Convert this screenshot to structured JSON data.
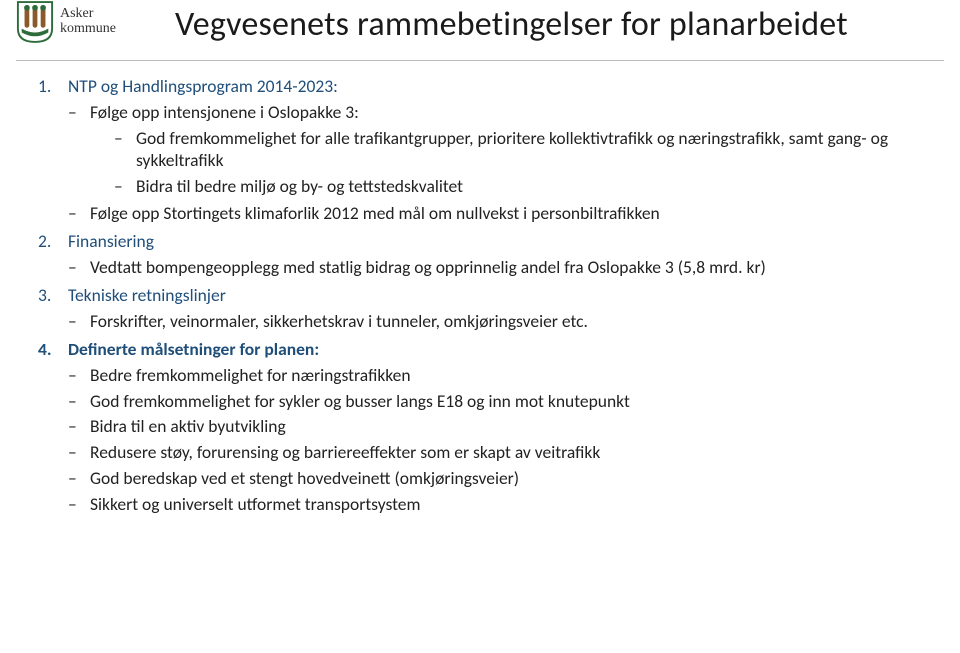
{
  "logo": {
    "line1": "Asker",
    "line2": "kommune"
  },
  "title": "Vegvesenets rammebetingelser for planarbeidet",
  "sections": [
    {
      "head": "NTP og Handlingsprogram 2014-2023:",
      "bold": false,
      "items": [
        {
          "text": "Følge opp intensjonene i Oslopakke 3:",
          "sub": [
            "God fremkommelighet for alle trafikantgrupper, prioritere kollektivtrafikk og næringstrafikk, samt gang- og sykkeltrafikk",
            "Bidra til bedre miljø og by- og tettstedskvalitet"
          ]
        },
        {
          "text": "Følge opp Stortingets klimaforlik 2012 med mål om nullvekst i personbiltrafikken"
        }
      ]
    },
    {
      "head": "Finansiering",
      "bold": false,
      "items": [
        {
          "text": "Vedtatt bompengeopplegg med statlig bidrag og opprinnelig andel fra Oslopakke 3 (5,8 mrd. kr)"
        }
      ]
    },
    {
      "head": "Tekniske retningslinjer",
      "bold": false,
      "tek": true,
      "items": [
        {
          "text": "Forskrifter, veinormaler, sikkerhetskrav i tunneler, omkjøringsveier etc."
        }
      ]
    },
    {
      "head": "Definerte målsetninger for planen:",
      "bold": true,
      "items": [
        {
          "text": "Bedre fremkommelighet for næringstrafikken"
        },
        {
          "text": "God fremkommelighet for sykler og busser langs E18 og inn mot knutepunkt"
        },
        {
          "text": "Bidra til en aktiv byutvikling"
        },
        {
          "text": "Redusere støy, forurensing og barriereeffekter som er skapt av veitrafikk"
        },
        {
          "text": "God beredskap ved et stengt hovedveinett (omkjøringsveier)"
        },
        {
          "text": "Sikkert og universelt utformet transportsystem"
        }
      ]
    }
  ]
}
